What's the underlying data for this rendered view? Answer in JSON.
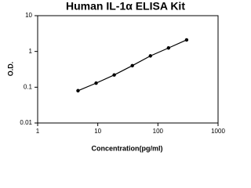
{
  "chart_data": {
    "type": "scatter",
    "title": "Human IL-1α ELISA Kit",
    "x_label": "Concentration(pg/ml)",
    "y_label": "O.D.",
    "x": [
      4.69,
      9.38,
      18.75,
      37.5,
      75,
      150,
      300
    ],
    "values": [
      0.08,
      0.13,
      0.22,
      0.4,
      0.75,
      1.25,
      2.1
    ],
    "color": "#000000",
    "line": true,
    "xscale": "log",
    "yscale": "log",
    "xlim": [
      1,
      1000
    ],
    "xticks": [
      1,
      10,
      100,
      1000
    ],
    "ylim": [
      0.01,
      10
    ],
    "yticks": [
      0.01,
      0.1,
      1,
      10
    ]
  }
}
